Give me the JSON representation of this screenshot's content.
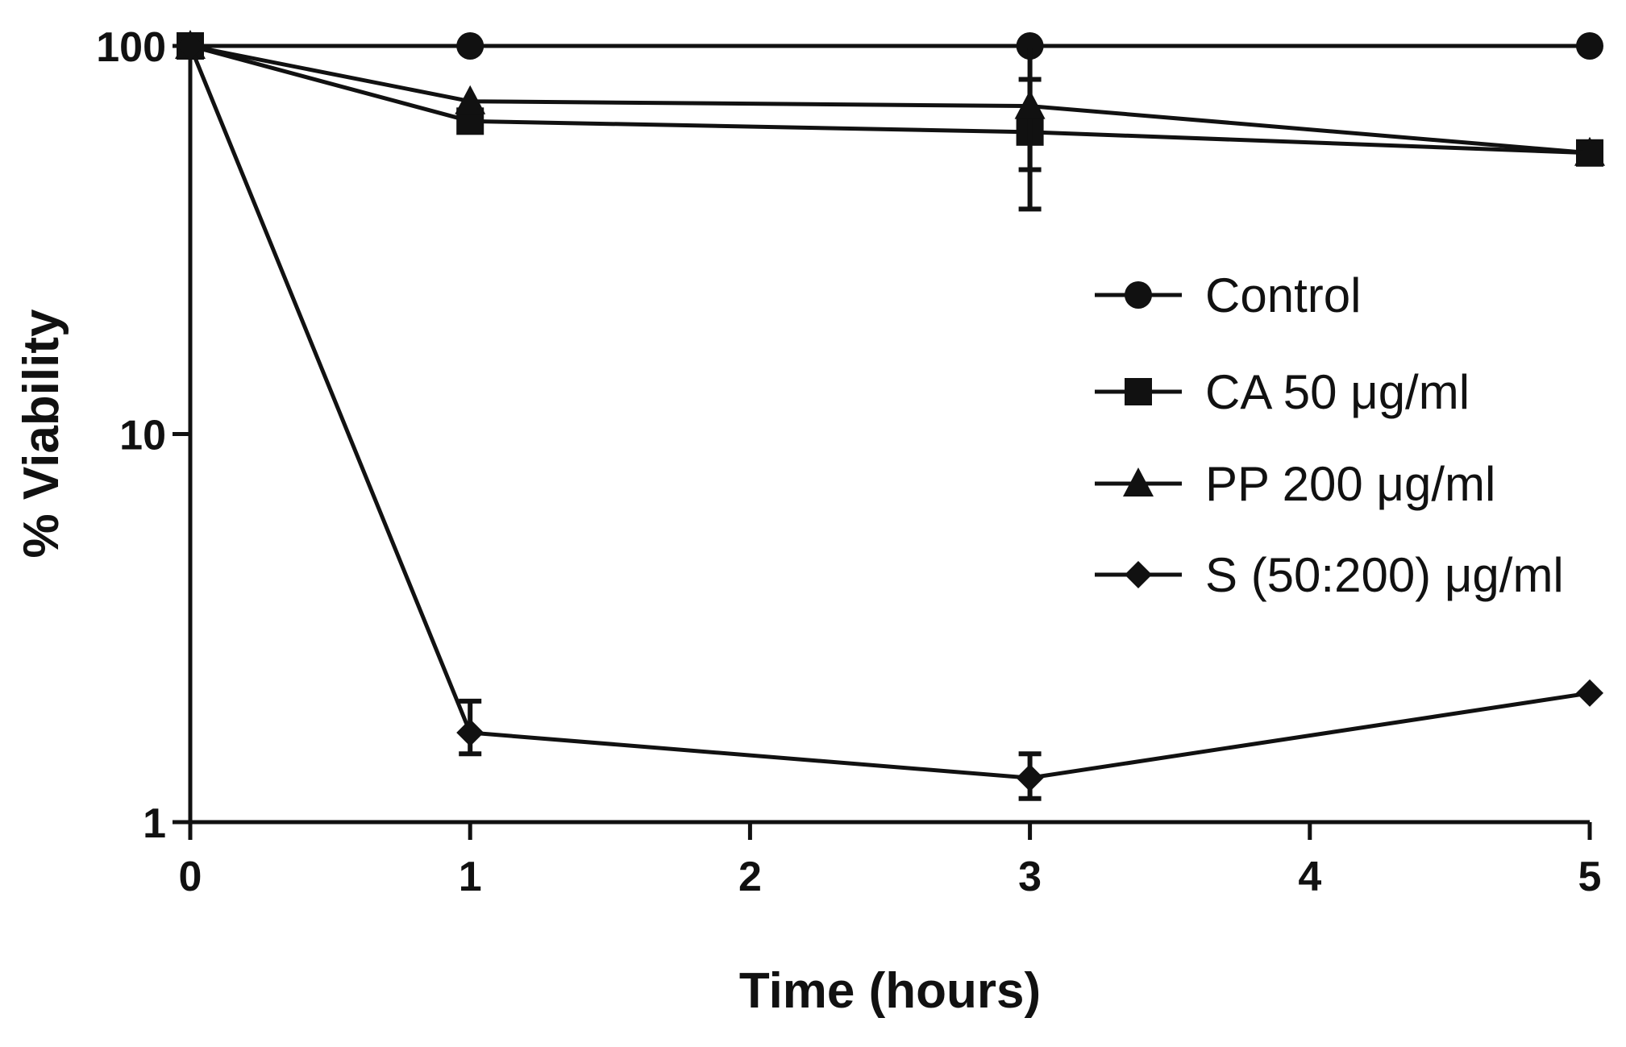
{
  "chart_data": {
    "type": "line",
    "title": "",
    "xlabel": "Time (hours)",
    "ylabel": "% Viability",
    "yscale": "log",
    "xlim": [
      0,
      5
    ],
    "ylim": [
      1,
      100
    ],
    "x_ticks": [
      "0",
      "1",
      "2",
      "3",
      "4",
      "5"
    ],
    "y_ticks": [
      "1",
      "10",
      "100"
    ],
    "grid": false,
    "legend_position": "right",
    "series": [
      {
        "name": "Control",
        "marker": "circle",
        "points": [
          {
            "x": 0,
            "y": 100
          },
          {
            "x": 1,
            "y": 100
          },
          {
            "x": 3,
            "y": 100
          },
          {
            "x": 5,
            "y": 100
          }
        ]
      },
      {
        "name": "CA 50 μg/ml",
        "marker": "square",
        "points": [
          {
            "x": 0,
            "y": 100
          },
          {
            "x": 1,
            "y": 64,
            "err_low": 61,
            "err_high": 67
          },
          {
            "x": 3,
            "y": 60,
            "err_low": 38,
            "err_high": 82
          },
          {
            "x": 5,
            "y": 53
          }
        ]
      },
      {
        "name": "PP 200 μg/ml",
        "marker": "triangle",
        "points": [
          {
            "x": 0,
            "y": 100
          },
          {
            "x": 1,
            "y": 72
          },
          {
            "x": 3,
            "y": 70,
            "err_low": 48,
            "err_high": 100
          },
          {
            "x": 5,
            "y": 53
          }
        ]
      },
      {
        "name": "S (50:200) μg/ml",
        "marker": "diamond",
        "points": [
          {
            "x": 0,
            "y": 100
          },
          {
            "x": 1,
            "y": 1.7,
            "err_low": 1.5,
            "err_high": 2.05
          },
          {
            "x": 3,
            "y": 1.3,
            "err_low": 1.15,
            "err_high": 1.5
          },
          {
            "x": 5,
            "y": 2.15
          }
        ]
      }
    ]
  }
}
